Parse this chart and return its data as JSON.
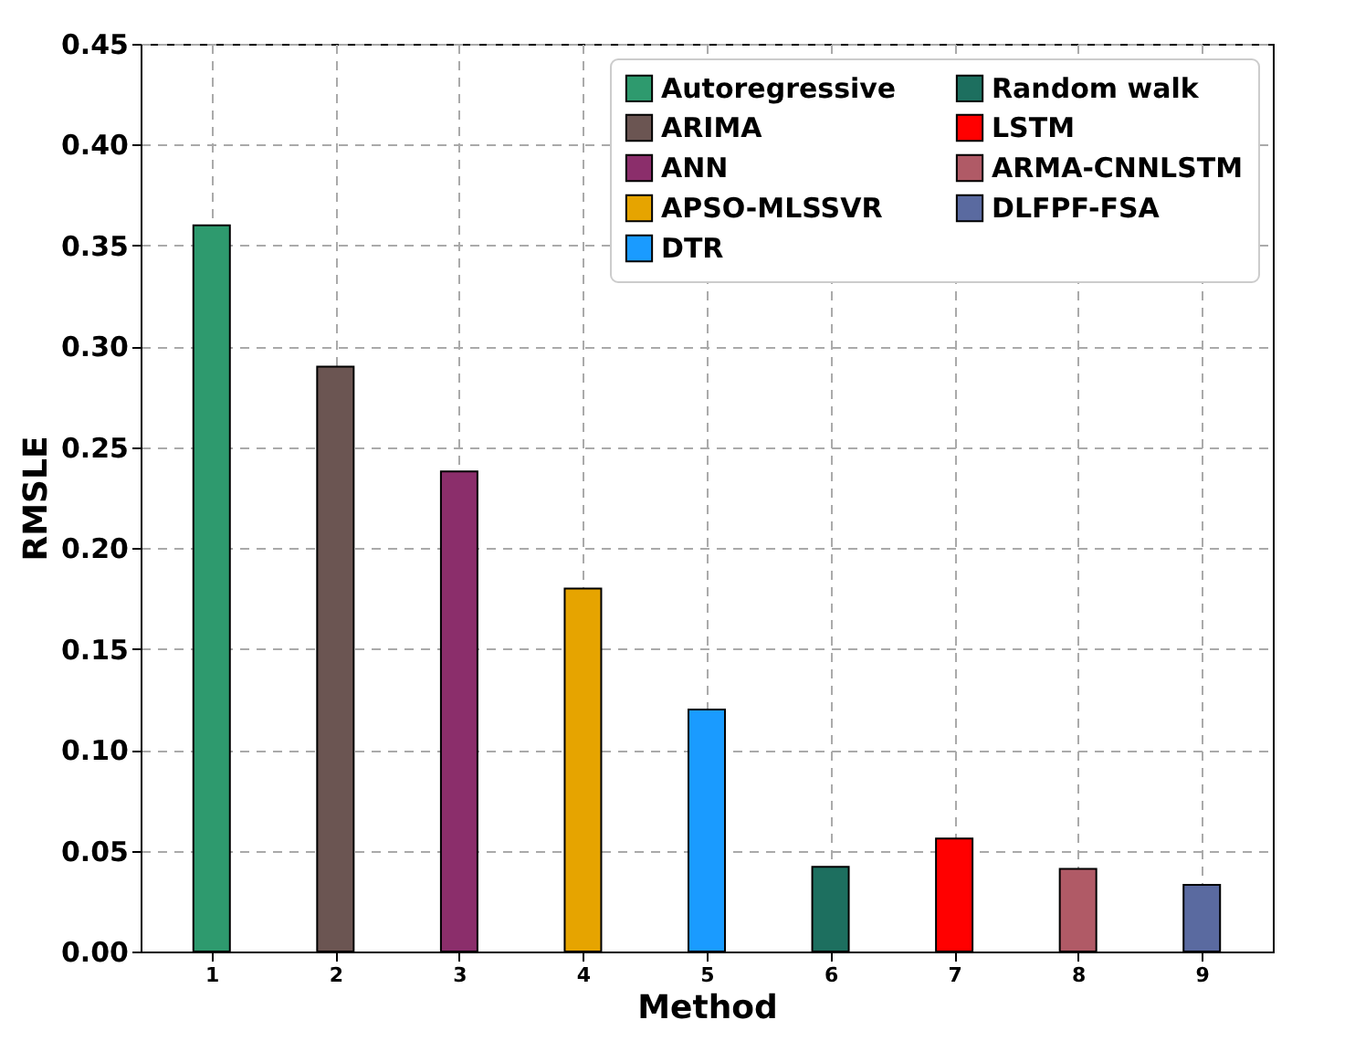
{
  "chart_data": {
    "type": "bar",
    "xlabel": "Method",
    "ylabel": "RMSLE",
    "categories": [
      "1",
      "2",
      "3",
      "4",
      "5",
      "6",
      "7",
      "8",
      "9"
    ],
    "series": [
      {
        "name": "Autoregressive",
        "color": "#2e9a6e",
        "values": [
          0.36,
          null,
          null,
          null,
          null,
          null,
          null,
          null,
          null
        ]
      },
      {
        "name": "ARIMA",
        "color": "#6b5552",
        "values": [
          null,
          0.29,
          null,
          null,
          null,
          null,
          null,
          null,
          null
        ]
      },
      {
        "name": "ANN",
        "color": "#8b2e6b",
        "values": [
          null,
          null,
          0.238,
          null,
          null,
          null,
          null,
          null,
          null
        ]
      },
      {
        "name": "APSO-MLSSVR",
        "color": "#e6a400",
        "values": [
          null,
          null,
          null,
          0.18,
          null,
          null,
          null,
          null,
          null
        ]
      },
      {
        "name": "DTR",
        "color": "#1a9bff",
        "values": [
          null,
          null,
          null,
          null,
          0.12,
          null,
          null,
          null,
          null
        ]
      },
      {
        "name": "Random walk",
        "color": "#1d6f5f",
        "values": [
          null,
          null,
          null,
          null,
          null,
          0.042,
          null,
          null,
          null
        ]
      },
      {
        "name": "LSTM",
        "color": "#ff0000",
        "values": [
          null,
          null,
          null,
          null,
          null,
          null,
          0.056,
          null,
          null
        ]
      },
      {
        "name": "ARMA-CNNLSTM",
        "color": "#b05a66",
        "values": [
          null,
          null,
          null,
          null,
          null,
          null,
          null,
          0.041,
          null
        ]
      },
      {
        "name": "DLFPF-FSA",
        "color": "#5a6aa0",
        "values": [
          null,
          null,
          null,
          null,
          null,
          null,
          null,
          null,
          0.033
        ]
      }
    ],
    "ylim": [
      0,
      0.45
    ],
    "yticks": [
      {
        "value": 0,
        "label": "0.00"
      },
      0.05,
      {
        "value": 0.1,
        "label": "0.10"
      },
      0.15,
      {
        "value": 0.2,
        "label": "0.20"
      },
      0.25,
      {
        "value": 0.3,
        "label": "0.30"
      },
      0.35,
      {
        "value": 0.4,
        "label": "0.40"
      },
      0.45
    ],
    "grid": true,
    "legend": "top right"
  }
}
